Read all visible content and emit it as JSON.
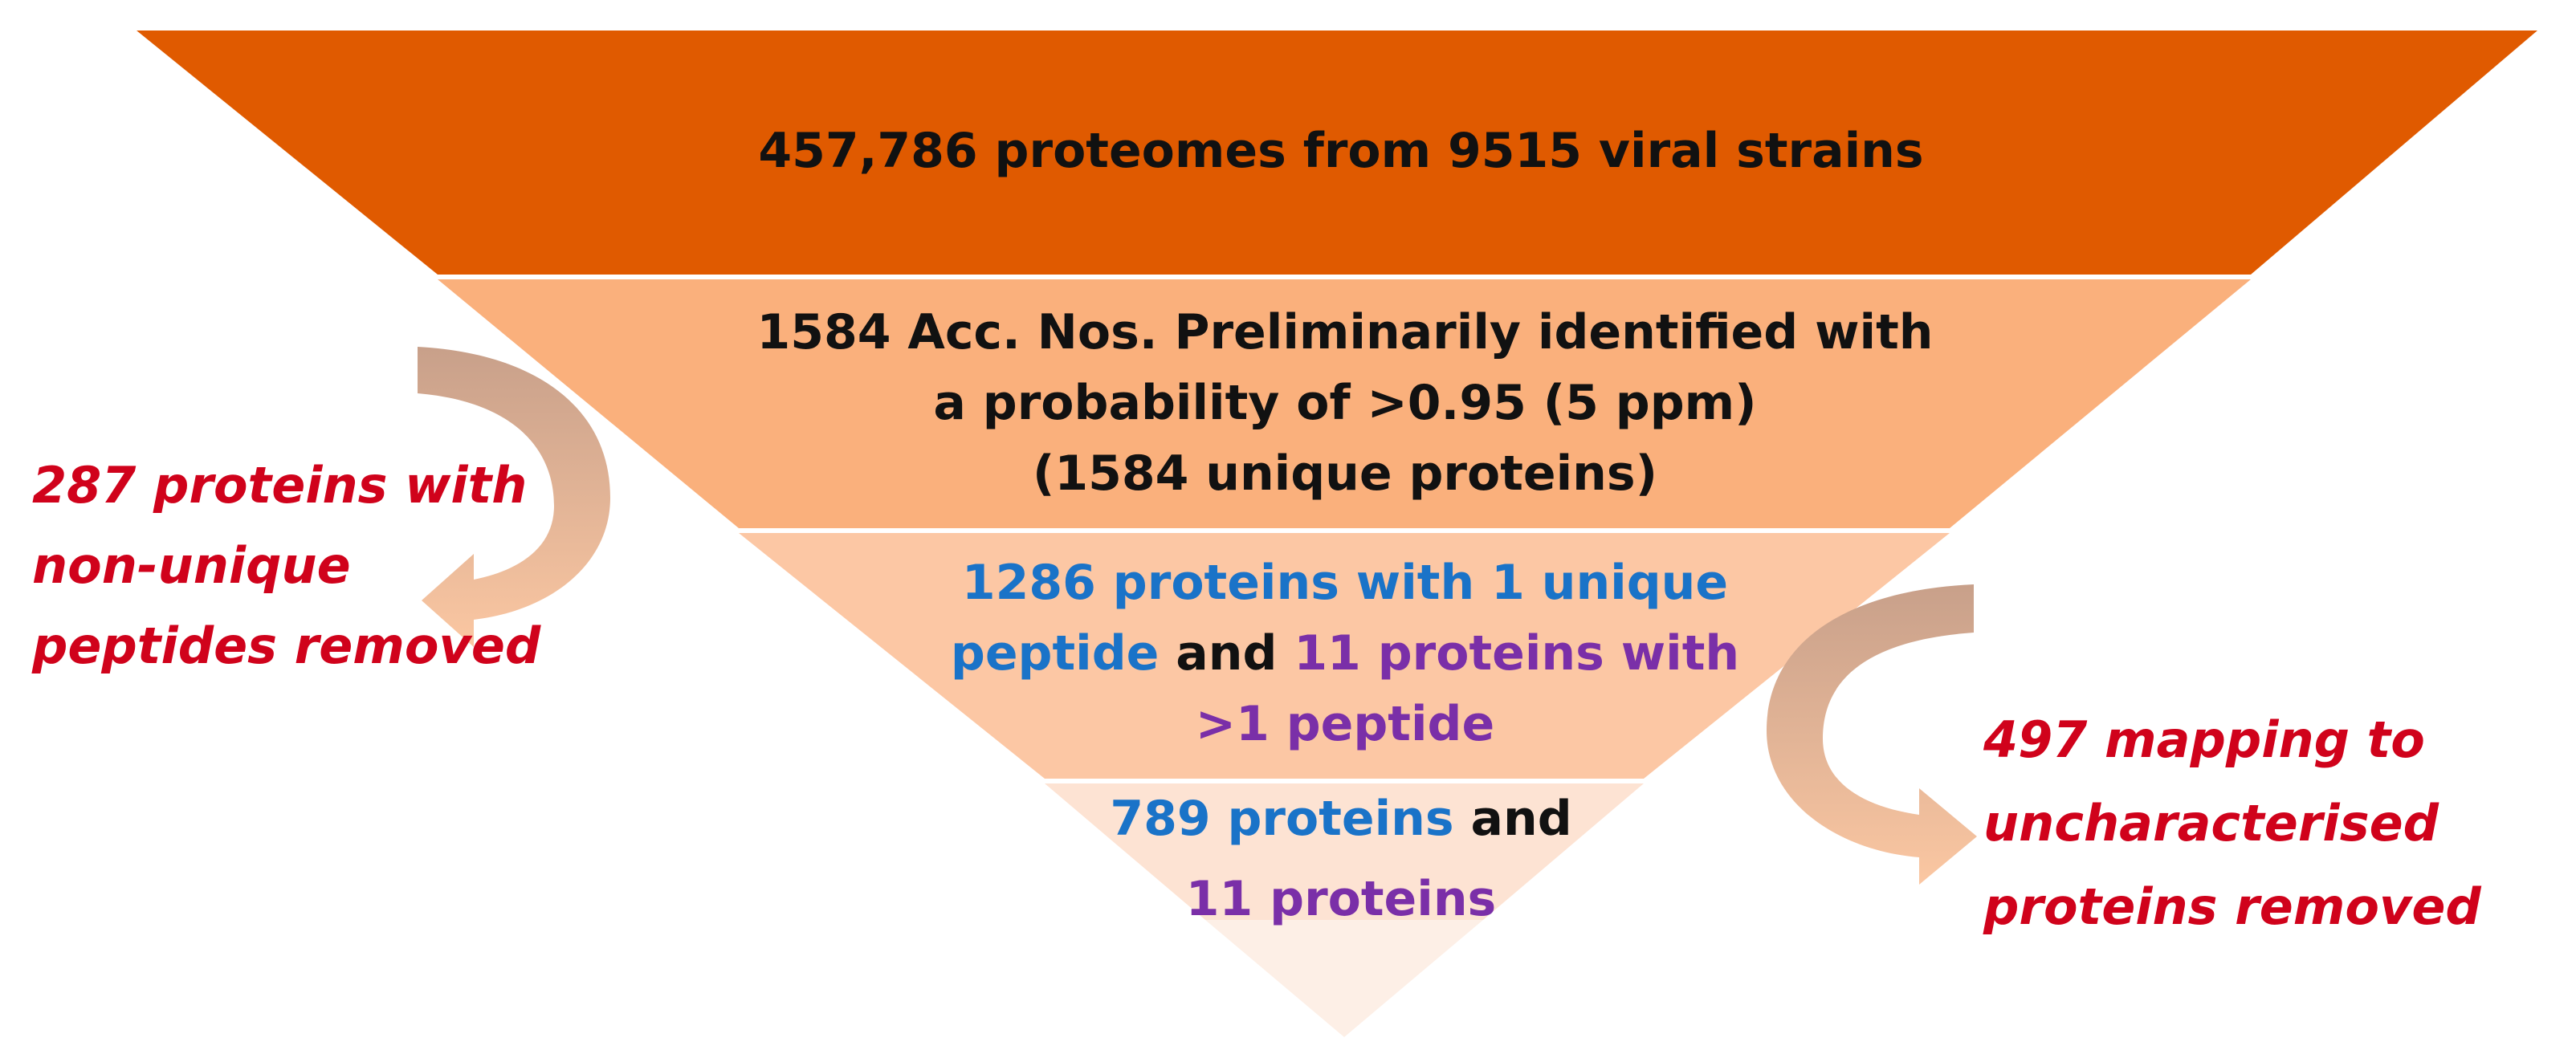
{
  "colors": {
    "tier1": "#e05a00",
    "tier2": "#fab07c",
    "tier3": "#fcc7a4",
    "tier4": "#fde3d3",
    "tier5": "#fdefe6",
    "arrow_top": "#c8a08a",
    "arrow_bottom": "#fbc7a2",
    "side_text": "#d0021b",
    "blue": "#1a73c8",
    "purple": "#7a2fa8",
    "black": "#111111"
  },
  "tier1": {
    "text": "457,786 proteomes from 9515 viral strains"
  },
  "tier2": {
    "line1": "1584 Acc. Nos.  Preliminarily identified with",
    "line2": "a probability of >0.95 (5 ppm)",
    "line3": "(1584 unique proteins)"
  },
  "tier3": {
    "line1_blue": "1286 proteins with 1 unique",
    "line2_blue": "peptide",
    "line2_black": " and ",
    "line2_purple": "11 proteins with",
    "line3_purple": ">1 peptide"
  },
  "tier4": {
    "line1_blue": "789 proteins",
    "line1_black": " and",
    "line2_purple": "11 proteins"
  },
  "left_note": {
    "line1": "287 proteins with",
    "line2": "non-unique",
    "line3": "peptides removed"
  },
  "right_note": {
    "line1": "497 mapping to",
    "line2": "uncharacterised",
    "line3": "proteins removed"
  }
}
